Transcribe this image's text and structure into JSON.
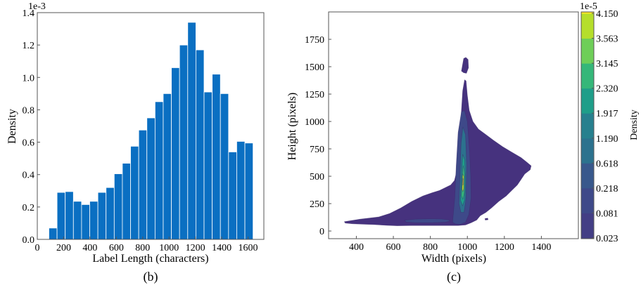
{
  "chart_data": [
    {
      "type": "bar",
      "panel_label": "(b)",
      "xlabel": "Label Length (characters)",
      "ylabel": "Density",
      "y_offset_text": "1e-3",
      "xlim": [
        0,
        1720
      ],
      "ylim": [
        0,
        1.4
      ],
      "x_ticks": [
        0,
        200,
        400,
        600,
        800,
        1000,
        1200,
        1400,
        1600
      ],
      "y_ticks": [
        0.0,
        0.2,
        0.4,
        0.6,
        0.8,
        1.0,
        1.2,
        1.4
      ],
      "y_tick_labels": [
        "0.0",
        "0.2",
        "0.4",
        "0.6",
        "0.8",
        "1.0",
        "1.2",
        "1.4"
      ],
      "bar_color": "#0a6fc2",
      "bin_edges": [
        88,
        150,
        212,
        274,
        336,
        398,
        460,
        522,
        584,
        646,
        708,
        770,
        832,
        894,
        956,
        1018,
        1080,
        1142,
        1204,
        1266,
        1328,
        1390,
        1452,
        1514,
        1576,
        1638
      ],
      "values": [
        0.07,
        0.29,
        0.295,
        0.235,
        0.215,
        0.235,
        0.29,
        0.32,
        0.405,
        0.47,
        0.575,
        0.675,
        0.75,
        0.85,
        0.9,
        1.06,
        1.2,
        1.34,
        1.17,
        0.91,
        1.02,
        0.9,
        0.54,
        0.605,
        0.595
      ]
    },
    {
      "type": "contour",
      "panel_label": "(c)",
      "xlabel": "Width (pixels)",
      "ylabel": "Height (pixels)",
      "xlim": [
        250,
        1600
      ],
      "ylim": [
        -70,
        2000
      ],
      "x_ticks": [
        400,
        600,
        800,
        1000,
        1200,
        1400
      ],
      "y_ticks": [
        0,
        250,
        500,
        750,
        1000,
        1250,
        1500,
        1750
      ],
      "colorbar": {
        "label": "Density",
        "offset_text": "1e-5",
        "tick_labels": [
          "0.023",
          "0.081",
          "0.218",
          "0.618",
          "1.190",
          "1.917",
          "2.320",
          "3.145",
          "3.563",
          "4.150"
        ],
        "colors": [
          "#46327e",
          "#433e85",
          "#3e4989",
          "#38588c",
          "#2c728e",
          "#27808e",
          "#1f9e89",
          "#35b779",
          "#6ece58",
          "#b5de2b",
          "#fde725"
        ]
      },
      "levels": [
        {
          "color": "#46327e",
          "polygons": [
            [
              [
                335,
                85
              ],
              [
                420,
                108
              ],
              [
                520,
                128
              ],
              [
                580,
                160
              ],
              [
                640,
                210
              ],
              [
                700,
                270
              ],
              [
                760,
                320
              ],
              [
                810,
                350
              ],
              [
                850,
                370
              ],
              [
                880,
                395
              ],
              [
                910,
                420
              ],
              [
                930,
                460
              ],
              [
                945,
                560
              ],
              [
                955,
                720
              ],
              [
                962,
                900
              ],
              [
                968,
                1100
              ],
              [
                975,
                1280
              ],
              [
                985,
                1380
              ],
              [
                993,
                1370
              ],
              [
                1000,
                1240
              ],
              [
                1010,
                1100
              ],
              [
                1030,
                1000
              ],
              [
                1060,
                930
              ],
              [
                1100,
                880
              ],
              [
                1140,
                830
              ],
              [
                1190,
                770
              ],
              [
                1240,
                720
              ],
              [
                1290,
                670
              ],
              [
                1320,
                630
              ],
              [
                1345,
                595
              ],
              [
                1340,
                560
              ],
              [
                1310,
                520
              ],
              [
                1290,
                470
              ],
              [
                1270,
                420
              ],
              [
                1240,
                370
              ],
              [
                1210,
                320
              ],
              [
                1170,
                270
              ],
              [
                1130,
                210
              ],
              [
                1100,
                170
              ],
              [
                1070,
                140
              ],
              [
                1050,
                100
              ],
              [
                1020,
                75
              ],
              [
                990,
                55
              ],
              [
                950,
                50
              ],
              [
                900,
                50
              ],
              [
                850,
                50
              ],
              [
                780,
                50
              ],
              [
                700,
                50
              ],
              [
                620,
                48
              ],
              [
                560,
                52
              ],
              [
                500,
                58
              ],
              [
                440,
                62
              ],
              [
                380,
                66
              ],
              [
                340,
                72
              ]
            ],
            [
              [
                968,
                1460
              ],
              [
                980,
                1575
              ],
              [
                992,
                1585
              ],
              [
                1004,
                1565
              ],
              [
                1006,
                1490
              ],
              [
                995,
                1440
              ],
              [
                980,
                1445
              ]
            ],
            [
              [
                1095,
                113
              ],
              [
                1110,
                118
              ],
              [
                1112,
                103
              ],
              [
                1097,
                100
              ]
            ]
          ]
        },
        {
          "color": "#3e4989",
          "polygons": [
            [
              [
                920,
                80
              ],
              [
                932,
                300
              ],
              [
                940,
                600
              ],
              [
                950,
                900
              ],
              [
                968,
                1090
              ],
              [
                985,
                1098
              ],
              [
                1000,
                1000
              ],
              [
                1012,
                720
              ],
              [
                1018,
                500
              ],
              [
                1020,
                300
              ],
              [
                1008,
                150
              ],
              [
                990,
                80
              ],
              [
                960,
                60
              ],
              [
                935,
                65
              ]
            ],
            [
              [
                660,
                98
              ],
              [
                720,
                108
              ],
              [
                800,
                112
              ],
              [
                860,
                110
              ],
              [
                900,
                102
              ],
              [
                905,
                90
              ],
              [
                880,
                80
              ],
              [
                800,
                75
              ],
              [
                720,
                75
              ],
              [
                670,
                82
              ]
            ]
          ]
        },
        {
          "color": "#2c728e",
          "polygons": [
            [
              [
                955,
                250
              ],
              [
                960,
                500
              ],
              [
                966,
                800
              ],
              [
                976,
                950
              ],
              [
                990,
                880
              ],
              [
                996,
                600
              ],
              [
                993,
                300
              ],
              [
                982,
                170
              ],
              [
                965,
                170
              ]
            ]
          ]
        },
        {
          "color": "#1f9e89",
          "polygons": [
            [
              [
                963,
                280
              ],
              [
                968,
                500
              ],
              [
                975,
                700
              ],
              [
                986,
                650
              ],
              [
                990,
                450
              ],
              [
                985,
                280
              ],
              [
                974,
                230
              ]
            ]
          ]
        },
        {
          "color": "#35b779",
          "polygons": [
            [
              [
                968,
                320
              ],
              [
                972,
                500
              ],
              [
                978,
                600
              ],
              [
                985,
                520
              ],
              [
                984,
                350
              ],
              [
                976,
                290
              ]
            ]
          ]
        },
        {
          "color": "#b5de2b",
          "polygons": [
            [
              [
                971,
                380
              ],
              [
                975,
                520
              ],
              [
                981,
                500
              ],
              [
                980,
                390
              ],
              [
                976,
                360
              ]
            ]
          ]
        },
        {
          "color": "#fde725",
          "polygons": [
            [
              [
                974,
                420
              ],
              [
                976,
                480
              ],
              [
                979,
                470
              ],
              [
                978,
                425
              ]
            ]
          ]
        }
      ]
    }
  ]
}
